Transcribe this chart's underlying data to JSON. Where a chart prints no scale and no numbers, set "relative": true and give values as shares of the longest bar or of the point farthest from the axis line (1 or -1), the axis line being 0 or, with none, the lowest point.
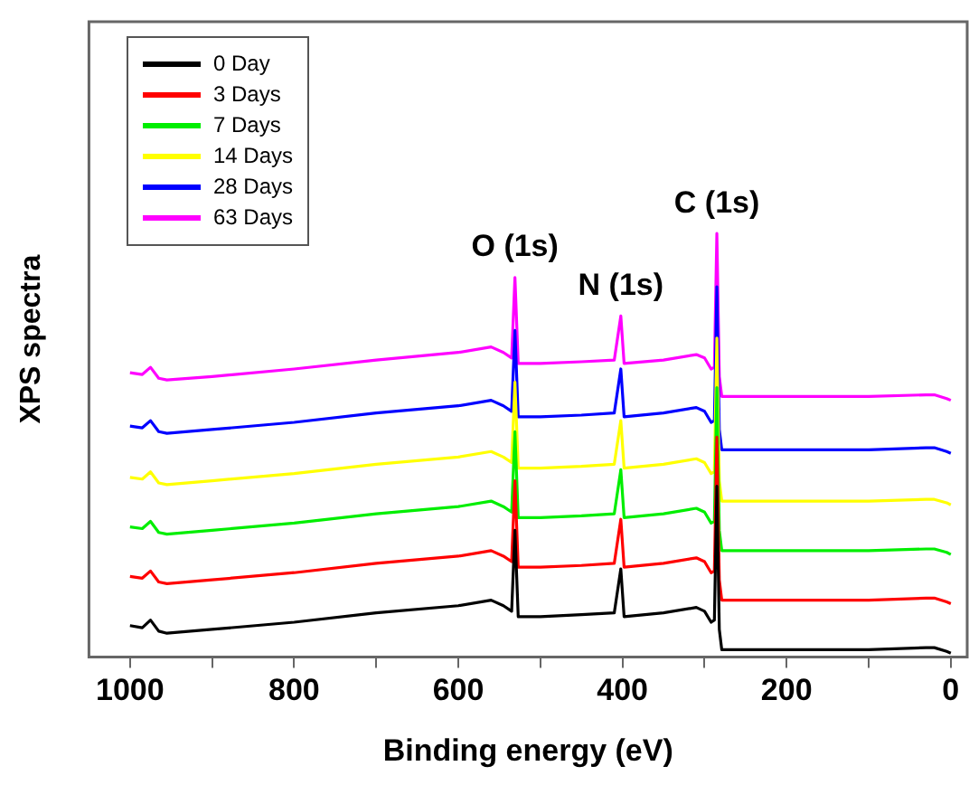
{
  "chart_data": {
    "type": "line",
    "relative": true,
    "xlabel": "Binding energy (eV)",
    "ylabel": "XPS spectra",
    "x": [
      1000,
      985,
      975,
      965,
      955,
      900,
      800,
      700,
      600,
      560,
      545,
      535,
      531,
      527,
      500,
      450,
      410,
      402,
      398,
      350,
      310,
      300,
      292,
      288,
      285,
      282,
      279,
      200,
      100,
      30,
      20,
      5,
      0
    ],
    "xlim": [
      1050,
      -20
    ],
    "xticks": [
      1000,
      {
        "value": 900,
        "label": null
      },
      800,
      {
        "value": 700,
        "label": null
      },
      600,
      {
        "value": 500,
        "label": null
      },
      400,
      {
        "value": 300,
        "label": null
      },
      200,
      {
        "value": 100,
        "label": null
      },
      0
    ],
    "grid": false,
    "legend": "top left",
    "marker": "none",
    "line_style": "solid",
    "series": [
      {
        "name": "0 Day",
        "color": "#000000",
        "values": [
          0.074,
          0.069,
          0.087,
          0.061,
          0.056,
          0.065,
          0.082,
          0.104,
          0.121,
          0.134,
          0.121,
          0.108,
          0.299,
          0.095,
          0.095,
          0.1,
          0.104,
          0.208,
          0.095,
          0.104,
          0.117,
          0.108,
          0.082,
          0.087,
          0.403,
          0.065,
          0.017,
          0.017,
          0.017,
          0.022,
          0.022,
          0.013,
          0.009
        ]
      },
      {
        "name": "3 Days",
        "color": "#ff0000",
        "values": [
          0.19,
          0.186,
          0.203,
          0.177,
          0.173,
          0.182,
          0.199,
          0.221,
          0.238,
          0.251,
          0.238,
          0.225,
          0.416,
          0.212,
          0.212,
          0.216,
          0.221,
          0.325,
          0.212,
          0.221,
          0.234,
          0.225,
          0.199,
          0.203,
          0.519,
          0.182,
          0.134,
          0.134,
          0.134,
          0.139,
          0.139,
          0.13,
          0.126
        ]
      },
      {
        "name": "7 Days",
        "color": "#00ee00",
        "values": [
          0.307,
          0.303,
          0.32,
          0.294,
          0.29,
          0.299,
          0.316,
          0.338,
          0.355,
          0.368,
          0.355,
          0.342,
          0.532,
          0.329,
          0.329,
          0.333,
          0.338,
          0.442,
          0.329,
          0.338,
          0.351,
          0.342,
          0.316,
          0.32,
          0.636,
          0.299,
          0.251,
          0.251,
          0.251,
          0.255,
          0.255,
          0.247,
          0.242
        ]
      },
      {
        "name": "14 Days",
        "color": "#ffff00",
        "values": [
          0.424,
          0.42,
          0.437,
          0.411,
          0.407,
          0.416,
          0.433,
          0.455,
          0.472,
          0.485,
          0.472,
          0.459,
          0.649,
          0.446,
          0.446,
          0.45,
          0.455,
          0.558,
          0.446,
          0.455,
          0.468,
          0.459,
          0.433,
          0.437,
          0.753,
          0.416,
          0.368,
          0.368,
          0.368,
          0.372,
          0.372,
          0.364,
          0.359
        ]
      },
      {
        "name": "28 Days",
        "color": "#0000ff",
        "values": [
          0.545,
          0.541,
          0.558,
          0.532,
          0.528,
          0.537,
          0.554,
          0.576,
          0.593,
          0.606,
          0.593,
          0.58,
          0.771,
          0.567,
          0.567,
          0.571,
          0.576,
          0.68,
          0.567,
          0.576,
          0.589,
          0.58,
          0.554,
          0.558,
          0.874,
          0.537,
          0.489,
          0.489,
          0.489,
          0.494,
          0.494,
          0.485,
          0.481
        ]
      },
      {
        "name": "63 Days",
        "color": "#ff00ff",
        "values": [
          0.671,
          0.667,
          0.684,
          0.658,
          0.654,
          0.662,
          0.68,
          0.701,
          0.719,
          0.732,
          0.719,
          0.706,
          0.896,
          0.693,
          0.693,
          0.697,
          0.701,
          0.805,
          0.693,
          0.701,
          0.714,
          0.706,
          0.68,
          0.684,
          1,
          0.662,
          0.615,
          0.615,
          0.615,
          0.619,
          0.619,
          0.61,
          0.606
        ]
      }
    ],
    "annotations": [
      {
        "text": "O (1s)",
        "x": 531,
        "y": 0.896
      },
      {
        "text": "N (1s)",
        "x": 402,
        "y": 0.805
      },
      {
        "text": "C (1s)",
        "x": 285,
        "y": 1
      }
    ]
  }
}
